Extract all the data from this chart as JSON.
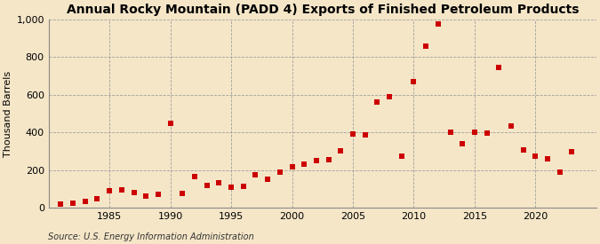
{
  "title": "Annual Rocky Mountain (PADD 4) Exports of Finished Petroleum Products",
  "ylabel": "Thousand Barrels",
  "source": "Source: U.S. Energy Information Administration",
  "background_color": "#f5e6c8",
  "plot_background_color": "#f5e6c8",
  "marker_color": "#cc0000",
  "marker": "s",
  "marker_size": 5,
  "ylim": [
    0,
    1000
  ],
  "yticks": [
    0,
    200,
    400,
    600,
    800,
    1000
  ],
  "ytick_labels": [
    "0",
    "200",
    "400",
    "600",
    "800",
    "1,000"
  ],
  "xticks": [
    1985,
    1990,
    1995,
    2000,
    2005,
    2010,
    2015,
    2020
  ],
  "xlim": [
    1980,
    2025
  ],
  "years": [
    1981,
    1982,
    1983,
    1984,
    1985,
    1986,
    1987,
    1988,
    1989,
    1990,
    1991,
    1992,
    1993,
    1994,
    1995,
    1996,
    1997,
    1998,
    1999,
    2000,
    2001,
    2002,
    2003,
    2004,
    2005,
    2006,
    2007,
    2008,
    2009,
    2010,
    2011,
    2012,
    2013,
    2014,
    2015,
    2016,
    2017,
    2018,
    2019,
    2020,
    2021,
    2022,
    2023
  ],
  "values": [
    20,
    25,
    35,
    45,
    90,
    95,
    80,
    60,
    70,
    450,
    75,
    165,
    120,
    130,
    110,
    115,
    175,
    150,
    190,
    215,
    230,
    250,
    255,
    300,
    390,
    385,
    560,
    590,
    275,
    670,
    860,
    975,
    400,
    340,
    400,
    395,
    745,
    435,
    305,
    275,
    260,
    190,
    295
  ],
  "title_fontsize": 10,
  "tick_fontsize": 8,
  "ylabel_fontsize": 8,
  "source_fontsize": 7
}
